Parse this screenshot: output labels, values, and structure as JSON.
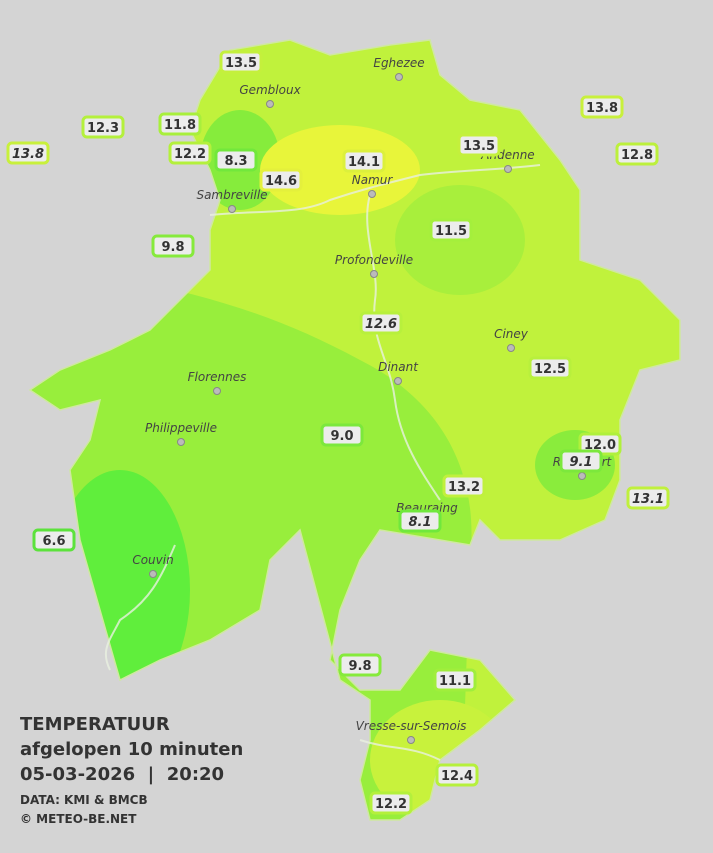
{
  "legend": {
    "title": "TEMPERATUUR",
    "subtitle": "afgelopen 10 minuten",
    "datetime": "05-03-2026  |  20:20",
    "source": "DATA: KMI & BMCB",
    "credit": "© METEO-BE.NET"
  },
  "cities": [
    {
      "name": "Eghezee"
    },
    {
      "name": "Gembloux"
    },
    {
      "name": "Andenne"
    },
    {
      "name": "Namur"
    },
    {
      "name": "Sambreville"
    },
    {
      "name": "Profondeville"
    },
    {
      "name": "Ciney"
    },
    {
      "name": "Dinant"
    },
    {
      "name": "Florennes"
    },
    {
      "name": "Philippeville"
    },
    {
      "name": "Rochefort"
    },
    {
      "name": "Beauraing"
    },
    {
      "name": "Couvin"
    },
    {
      "name": "Vresse-sur-Semois"
    }
  ],
  "stations": [
    {
      "value": "13.5",
      "italic": false,
      "color": "#c4f03c"
    },
    {
      "value": "12.3",
      "italic": false,
      "color": "#b4f03c"
    },
    {
      "value": "11.8",
      "italic": false,
      "color": "#a8ef3c"
    },
    {
      "value": "13.8",
      "italic": true,
      "color": "#c8f03c"
    },
    {
      "value": "12.2",
      "italic": false,
      "color": "#b4f03c"
    },
    {
      "value": "8.3",
      "italic": false,
      "color": "#72e83c"
    },
    {
      "value": "14.1",
      "italic": false,
      "color": "#dcf03c"
    },
    {
      "value": "14.6",
      "italic": false,
      "color": "#e4f03c"
    },
    {
      "value": "13.5",
      "italic": false,
      "color": "#c4f03c"
    },
    {
      "value": "13.8",
      "italic": false,
      "color": "#c8f03c"
    },
    {
      "value": "12.8",
      "italic": false,
      "color": "#bcf03c"
    },
    {
      "value": "9.8",
      "italic": false,
      "color": "#86ea3c"
    },
    {
      "value": "11.5",
      "italic": false,
      "color": "#a4ef3c"
    },
    {
      "value": "12.6",
      "italic": true,
      "color": "#b8f03c"
    },
    {
      "value": "12.5",
      "italic": false,
      "color": "#b8f03c"
    },
    {
      "value": "9.0",
      "italic": false,
      "color": "#7ce83c"
    },
    {
      "value": "12.0",
      "italic": false,
      "color": "#b0f03c"
    },
    {
      "value": "9.1",
      "italic": true,
      "color": "#7ce83c"
    },
    {
      "value": "13.1",
      "italic": true,
      "color": "#c0f03c"
    },
    {
      "value": "13.2",
      "italic": false,
      "color": "#c0f03c"
    },
    {
      "value": "8.1",
      "italic": true,
      "color": "#70e83c"
    },
    {
      "value": "6.6",
      "italic": false,
      "color": "#5ce23c"
    },
    {
      "value": "9.8",
      "italic": false,
      "color": "#86ea3c"
    },
    {
      "value": "11.1",
      "italic": false,
      "color": "#a0ee3c"
    },
    {
      "value": "12.4",
      "italic": false,
      "color": "#b6f03c"
    },
    {
      "value": "12.2",
      "italic": false,
      "color": "#b4f03c"
    }
  ]
}
